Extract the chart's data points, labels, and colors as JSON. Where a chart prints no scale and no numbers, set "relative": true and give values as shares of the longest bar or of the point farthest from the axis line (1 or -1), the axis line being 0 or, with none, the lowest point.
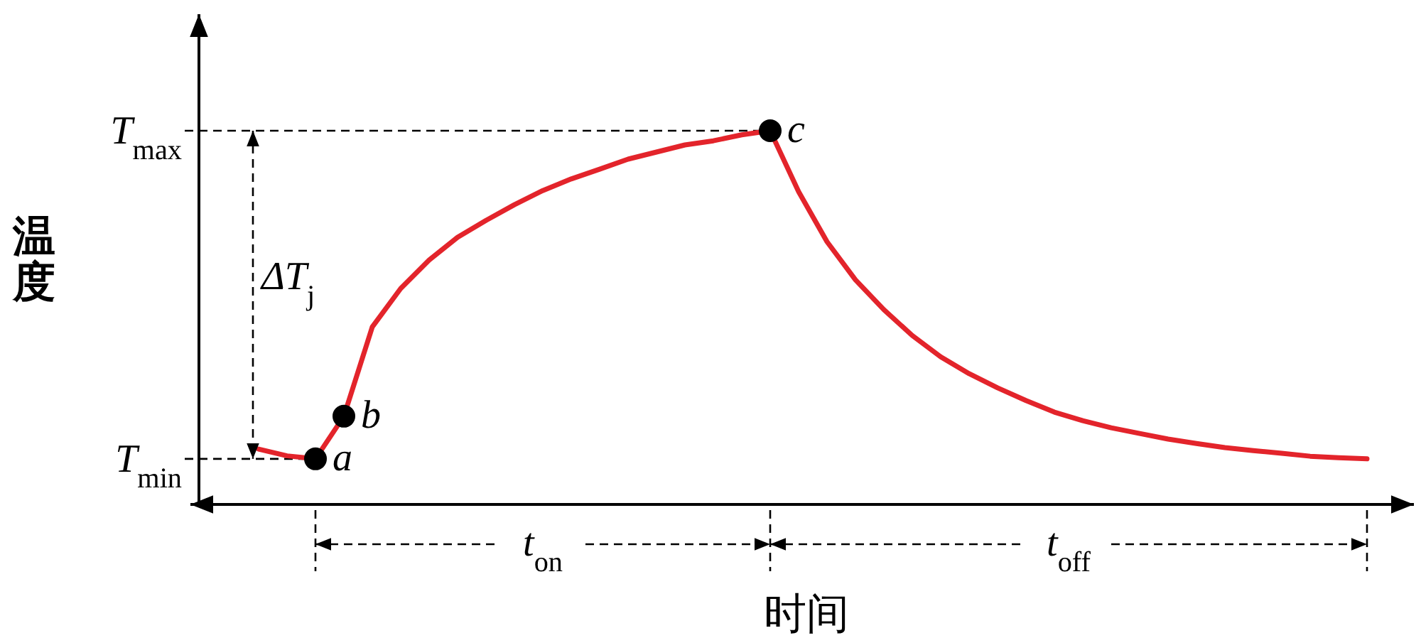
{
  "chart_data": {
    "type": "line",
    "relative": true,
    "xlabel": "时间",
    "ylabel": "温度",
    "categories": [
      null,
      null,
      null,
      null,
      null,
      null,
      null,
      null,
      null,
      null,
      null,
      null,
      null,
      null,
      null,
      null,
      null,
      null,
      null,
      null,
      null,
      null,
      null,
      null,
      null,
      null,
      null,
      null,
      null,
      null,
      null,
      null,
      null,
      null,
      null,
      null,
      null,
      null,
      null,
      null
    ],
    "series": [
      {
        "color": "#e3242b",
        "line_style": "solid",
        "values": [
          0.148,
          0.13,
          0.122,
          0.236,
          0.475,
          0.578,
          0.654,
          0.715,
          0.76,
          0.802,
          0.84,
          0.871,
          0.897,
          0.924,
          0.943,
          0.962,
          0.973,
          0.989,
          1.0,
          0.837,
          0.703,
          0.601,
          0.521,
          0.452,
          0.395,
          0.35,
          0.312,
          0.278,
          0.247,
          0.224,
          0.205,
          0.19,
          0.175,
          0.163,
          0.152,
          0.144,
          0.137,
          0.129,
          0.125,
          0.122
        ]
      }
    ],
    "ref_lines": [
      {
        "axis": "y",
        "value": 1.0,
        "label": "T$_{max}$",
        "line_style": "dashed",
        "color": "#000000"
      },
      {
        "axis": "y",
        "value": 0.122,
        "label": "T$_{min}$",
        "line_style": "dashed",
        "color": "#000000"
      }
    ],
    "annotations": [
      "a",
      "b",
      "c",
      "ΔT$_{j}$",
      "t$_{on}$",
      "t$_{off}$"
    ]
  }
}
